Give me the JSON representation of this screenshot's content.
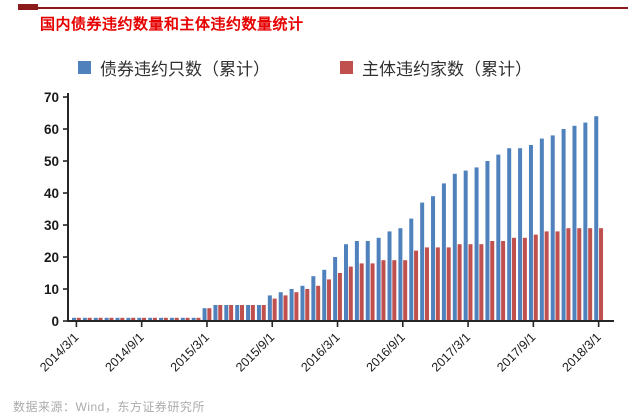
{
  "page": {
    "title": "国内债券违约数量和主体违约数量统计",
    "source_note": "数据来源：Wind，东方证券研究所"
  },
  "colors": {
    "title": "#e60000",
    "top_rule": "#8b1a1a",
    "axis": "#262626",
    "tick_label": "#1a1a1a",
    "bond_series": "#4f81bd",
    "issuer_series": "#c0504d",
    "source_text": "#ababab"
  },
  "legend": [
    {
      "label": "债券违约只数（累计）",
      "color": "#4f81bd"
    },
    {
      "label": "主体违约家数（累计）",
      "color": "#c0504d"
    }
  ],
  "chart_data": {
    "type": "bar",
    "title": "国内债券违约数量和主体违约数量统计",
    "xlabel": "",
    "ylabel": "",
    "ylim": [
      0,
      70
    ],
    "y_ticks": [
      0,
      10,
      20,
      30,
      40,
      50,
      60,
      70
    ],
    "grid": false,
    "legend_position": "top",
    "x_tick_labels": [
      "2014/3/1",
      "2014/9/1",
      "2015/3/1",
      "2015/9/1",
      "2016/3/1",
      "2016/9/1",
      "2017/3/1",
      "2017/9/1",
      "2018/3/1"
    ],
    "x_tick_every": 6,
    "categories": [
      "2014/3/1",
      "2014/4/1",
      "2014/5/1",
      "2014/6/1",
      "2014/7/1",
      "2014/8/1",
      "2014/9/1",
      "2014/10/1",
      "2014/11/1",
      "2014/12/1",
      "2015/1/1",
      "2015/2/1",
      "2015/3/1",
      "2015/4/1",
      "2015/5/1",
      "2015/6/1",
      "2015/7/1",
      "2015/8/1",
      "2015/9/1",
      "2015/10/1",
      "2015/11/1",
      "2015/12/1",
      "2016/1/1",
      "2016/2/1",
      "2016/3/1",
      "2016/4/1",
      "2016/5/1",
      "2016/6/1",
      "2016/7/1",
      "2016/8/1",
      "2016/9/1",
      "2016/10/1",
      "2016/11/1",
      "2016/12/1",
      "2017/1/1",
      "2017/2/1",
      "2017/3/1",
      "2017/4/1",
      "2017/5/1",
      "2017/6/1",
      "2017/7/1",
      "2017/8/1",
      "2017/9/1",
      "2017/10/1",
      "2017/11/1",
      "2017/12/1",
      "2018/1/1",
      "2018/2/1",
      "2018/3/1"
    ],
    "series": [
      {
        "name": "债券违约只数（累计）",
        "color": "#4f81bd",
        "values": [
          1,
          1,
          1,
          1,
          1,
          1,
          1,
          1,
          1,
          1,
          1,
          1,
          4,
          5,
          5,
          5,
          5,
          5,
          8,
          9,
          10,
          11,
          14,
          16,
          20,
          24,
          25,
          25,
          26,
          28,
          29,
          32,
          37,
          39,
          43,
          46,
          47,
          48,
          50,
          52,
          54,
          54,
          55,
          57,
          58,
          60,
          61,
          62,
          64
        ]
      },
      {
        "name": "主体违约家数（累计）",
        "color": "#c0504d",
        "values": [
          1,
          1,
          1,
          1,
          1,
          1,
          1,
          1,
          1,
          1,
          1,
          1,
          4,
          5,
          5,
          5,
          5,
          5,
          7,
          8,
          9,
          10,
          11,
          13,
          15,
          17,
          18,
          18,
          19,
          19,
          19,
          22,
          23,
          23,
          23,
          24,
          24,
          24,
          25,
          25,
          26,
          26,
          27,
          28,
          28,
          29,
          29,
          29,
          29
        ]
      }
    ]
  }
}
